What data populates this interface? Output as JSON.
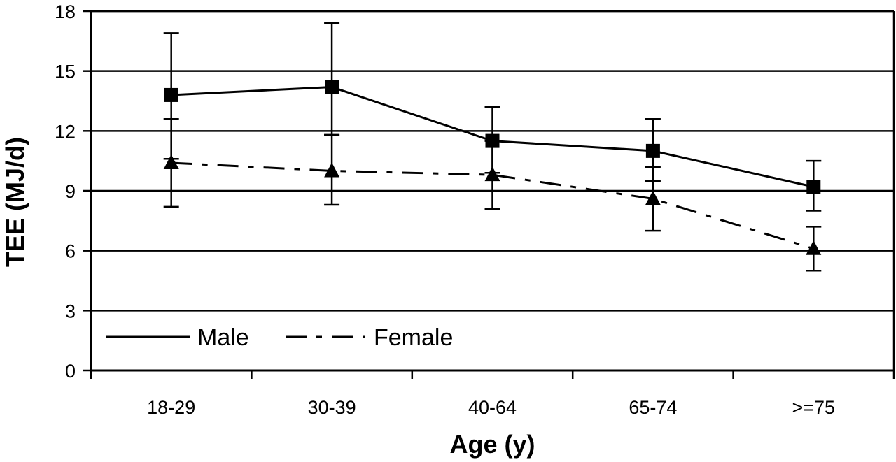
{
  "chart_data": {
    "type": "line",
    "title": "",
    "xlabel": "Age (y)",
    "ylabel": "TEE (MJ/d)",
    "ylim": [
      0,
      18
    ],
    "yticks": [
      0,
      3,
      6,
      9,
      12,
      15,
      18
    ],
    "ytick_labels": [
      "0",
      "3",
      "6",
      "9",
      "12",
      "15",
      "18"
    ],
    "categories": [
      "18-29",
      "30-39",
      "40-64",
      "65-74",
      ">=75"
    ],
    "grid": "horizontal",
    "legend_position": "bottom-left",
    "series": [
      {
        "name": "Male",
        "marker": "square",
        "line_style": "solid",
        "values": [
          13.8,
          14.2,
          11.5,
          11.0,
          9.2
        ],
        "error_low": [
          10.6,
          11.8,
          9.9,
          9.5,
          8.0
        ],
        "error_high": [
          16.9,
          17.4,
          13.2,
          12.6,
          10.5
        ]
      },
      {
        "name": "Female",
        "marker": "triangle",
        "line_style": "dashed",
        "values": [
          10.4,
          10.0,
          9.8,
          8.6,
          6.1
        ],
        "error_low": [
          8.2,
          8.3,
          8.1,
          7.0,
          5.0
        ],
        "error_high": [
          12.6,
          11.8,
          11.5,
          10.2,
          7.2
        ]
      }
    ]
  }
}
